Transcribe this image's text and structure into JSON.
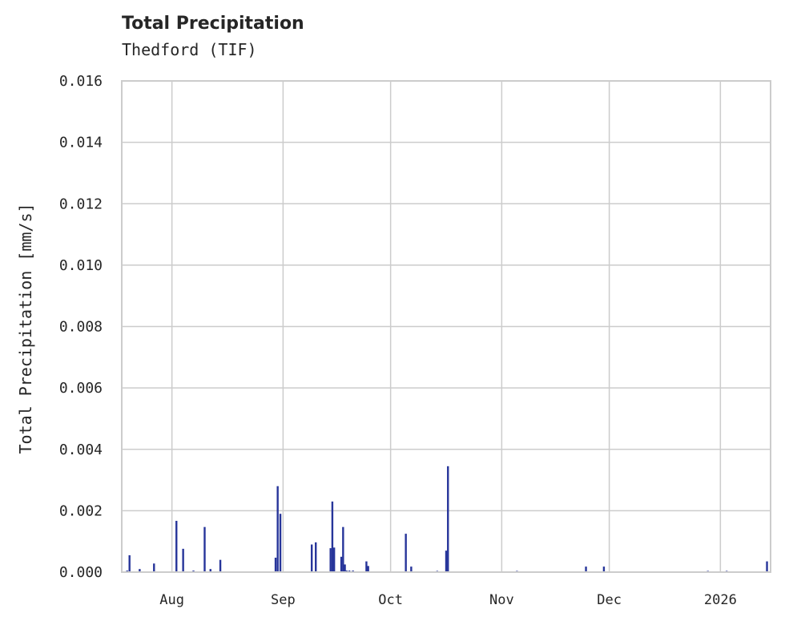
{
  "chart_data": {
    "type": "bar",
    "title": "Total Precipitation",
    "subtitle": "Thedford (TIF)",
    "xlabel": "",
    "ylabel": "Total Precipitation [mm/s]",
    "ylim": [
      0,
      0.016
    ],
    "yticks": [
      "0.000",
      "0.002",
      "0.004",
      "0.006",
      "0.008",
      "0.010",
      "0.012",
      "0.014",
      "0.016"
    ],
    "xlim": [
      "2025-07-18",
      "2026-01-15"
    ],
    "xticks": [
      {
        "date": "2025-08-01",
        "label": "Aug"
      },
      {
        "date": "2025-09-01",
        "label": "Sep"
      },
      {
        "date": "2025-10-01",
        "label": "Oct"
      },
      {
        "date": "2025-11-01",
        "label": "Nov"
      },
      {
        "date": "2025-12-01",
        "label": "Dec"
      },
      {
        "date": "2026-01-01",
        "label": "2026"
      }
    ],
    "grid": true,
    "bar_color": "#27359a",
    "series": [
      {
        "name": "Total Precipitation",
        "points": [
          {
            "date": "2025-07-19T12:00",
            "value": 5e-05
          },
          {
            "date": "2025-07-20T04:00",
            "value": 0.00055
          },
          {
            "date": "2025-07-23T00:00",
            "value": 0.0001
          },
          {
            "date": "2025-07-27T00:00",
            "value": 0.00028
          },
          {
            "date": "2025-08-02T06:00",
            "value": 0.00167
          },
          {
            "date": "2025-08-04T03:00",
            "value": 0.00076
          },
          {
            "date": "2025-08-07T00:00",
            "value": 5e-05
          },
          {
            "date": "2025-08-10T03:00",
            "value": 0.00147
          },
          {
            "date": "2025-08-11T18:00",
            "value": 0.0001
          },
          {
            "date": "2025-08-14T12:00",
            "value": 0.0004
          },
          {
            "date": "2025-08-29T22:00",
            "value": 0.00047
          },
          {
            "date": "2025-08-30T12:00",
            "value": 0.0028
          },
          {
            "date": "2025-08-31T06:00",
            "value": 0.0019
          },
          {
            "date": "2025-09-09T00:00",
            "value": 0.0009
          },
          {
            "date": "2025-09-10T03:00",
            "value": 0.00097
          },
          {
            "date": "2025-09-14T06:00",
            "value": 0.00078
          },
          {
            "date": "2025-09-14T18:00",
            "value": 0.0023
          },
          {
            "date": "2025-09-15T06:00",
            "value": 0.0008
          },
          {
            "date": "2025-09-17T06:00",
            "value": 0.0005
          },
          {
            "date": "2025-09-17T18:00",
            "value": 0.00147
          },
          {
            "date": "2025-09-18T06:00",
            "value": 0.00025
          },
          {
            "date": "2025-09-18T18:00",
            "value": 5e-05
          },
          {
            "date": "2025-09-19T12:00",
            "value": 5e-05
          },
          {
            "date": "2025-09-20T12:00",
            "value": 5e-05
          },
          {
            "date": "2025-09-24T06:00",
            "value": 0.00035
          },
          {
            "date": "2025-09-24T18:00",
            "value": 0.0002
          },
          {
            "date": "2025-10-05T06:00",
            "value": 0.00125
          },
          {
            "date": "2025-10-06T18:00",
            "value": 0.00018
          },
          {
            "date": "2025-10-14T00:00",
            "value": 4e-05
          },
          {
            "date": "2025-10-16T12:00",
            "value": 0.0007
          },
          {
            "date": "2025-10-17T00:00",
            "value": 0.00345
          },
          {
            "date": "2025-11-05T06:00",
            "value": 3e-05
          },
          {
            "date": "2025-11-24T12:00",
            "value": 0.00018
          },
          {
            "date": "2025-11-29T12:00",
            "value": 0.00018
          },
          {
            "date": "2025-12-28T12:00",
            "value": 4e-05
          },
          {
            "date": "2026-01-02T18:00",
            "value": 4e-05
          },
          {
            "date": "2026-01-14T00:00",
            "value": 0.00035
          }
        ]
      }
    ]
  }
}
